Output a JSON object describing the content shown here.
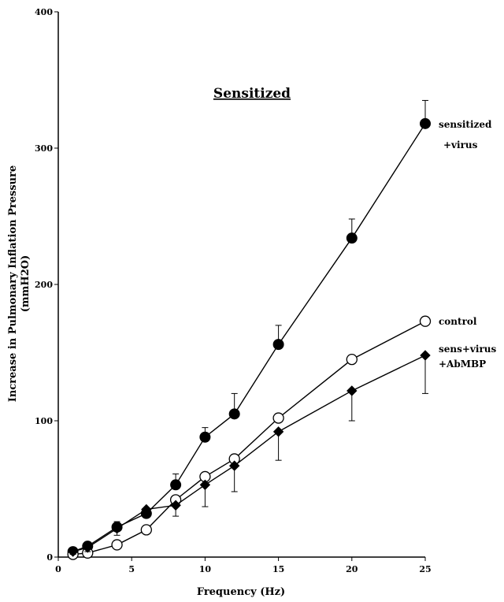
{
  "chart_data": {
    "type": "line",
    "title": "Sensitized",
    "xlabel": "Frequency (Hz)",
    "ylabel_lines": [
      "Increase in Pulmonary Inflation Pressure",
      "(mmH2O)"
    ],
    "xlim": [
      0,
      25
    ],
    "ylim": [
      0,
      400
    ],
    "xticks": [
      0,
      5,
      10,
      15,
      20,
      25
    ],
    "yticks": [
      0,
      100,
      200,
      300,
      400
    ],
    "grid": false,
    "legend": "none (series labeled at line ends)",
    "x": [
      1,
      2,
      4,
      6,
      8,
      10,
      12,
      15,
      20,
      25
    ],
    "series": [
      {
        "name": "sensitized +virus",
        "label_lines": [
          "sensitized",
          "+virus"
        ],
        "marker": "filled-circle",
        "values": [
          4,
          8,
          22,
          32,
          53,
          88,
          105,
          156,
          234,
          318
        ],
        "err_upper": [
          1,
          2,
          4,
          4,
          8,
          7,
          15,
          14,
          14,
          17
        ]
      },
      {
        "name": "control",
        "label_lines": [
          "control"
        ],
        "marker": "open-circle",
        "values": [
          2,
          3,
          9,
          20,
          42,
          59,
          72,
          102,
          145,
          173
        ],
        "err_upper": [
          0,
          0,
          0,
          0,
          0,
          0,
          0,
          0,
          0,
          0
        ]
      },
      {
        "name": "sens+virus +AbMBP",
        "label_lines": [
          "sens+virus",
          "+AbMBP"
        ],
        "marker": "filled-diamond",
        "values": [
          4,
          7,
          21,
          35,
          38,
          53,
          67,
          92,
          122,
          148
        ],
        "err_lower": [
          2,
          3,
          5,
          5,
          8,
          16,
          19,
          21,
          22,
          28
        ]
      }
    ]
  }
}
